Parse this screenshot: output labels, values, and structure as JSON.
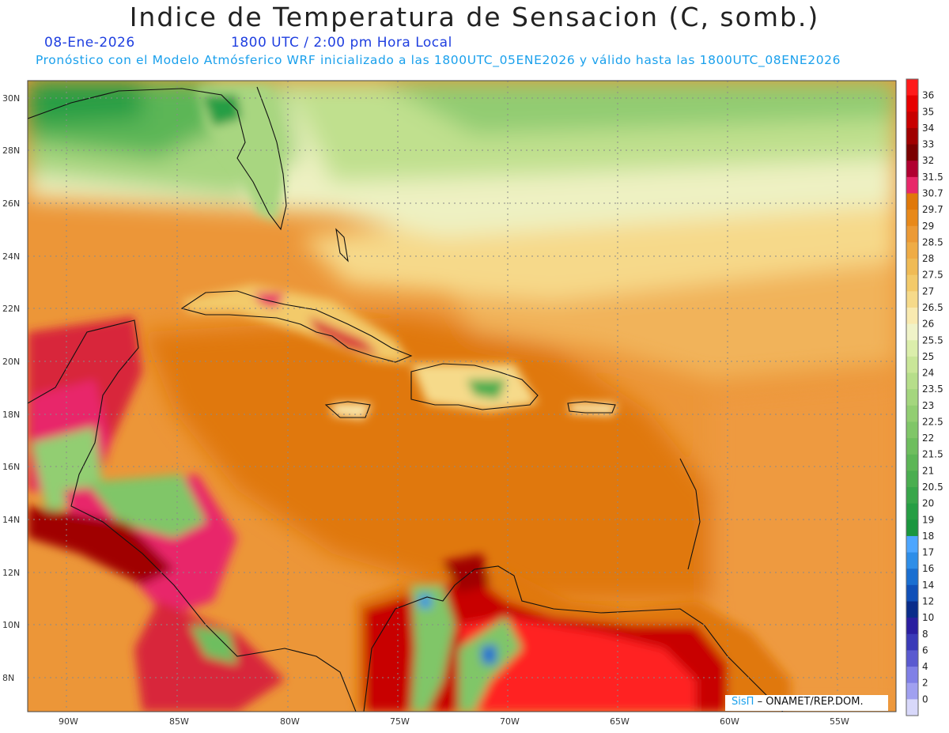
{
  "header": {
    "title": "Indice de Temperatura de Sensacion (C, somb.)",
    "date": "08-Ene-2026",
    "time": "1800 UTC / 2:00 pm Hora Local",
    "model_line": "Pronóstico con el Modelo Atmósferico WRF inicializado a las 1800UTC_05ENE2026 y válido hasta las  1800UTC_08ENE2026"
  },
  "axes": {
    "lat_labels": [
      "30N",
      "28N",
      "26N",
      "24N",
      "22N",
      "20N",
      "18N",
      "16N",
      "14N",
      "12N",
      "10N",
      "8N"
    ],
    "lon_labels": [
      "90W",
      "85W",
      "80W",
      "75W",
      "70W",
      "65W",
      "60W",
      "55W"
    ]
  },
  "colorbar": {
    "levels": [
      "36",
      "35",
      "34",
      "33",
      "32",
      "31.5",
      "30.7",
      "29.7",
      "29",
      "28.5",
      "28",
      "27.5",
      "27",
      "26.5",
      "26",
      "25.5",
      "25",
      "24",
      "23.5",
      "23",
      "22.5",
      "22",
      "21.5",
      "21",
      "20.5",
      "20",
      "19",
      "18",
      "17",
      "16",
      "14",
      "12",
      "10",
      "8",
      "6",
      "4",
      "2",
      "0"
    ],
    "colors": [
      "#ff1a1a",
      "#e60000",
      "#c80000",
      "#a00000",
      "#7a0000",
      "#b00030",
      "#e8286a",
      "#e0780a",
      "#e8891a",
      "#ec9a35",
      "#efac45",
      "#f0bb55",
      "#f3ca6a",
      "#f6da8a",
      "#f9eab0",
      "#f0f3c8",
      "#dbeeab",
      "#c9e698",
      "#b6de8a",
      "#a4d67e",
      "#92ce72",
      "#80c668",
      "#6ebe5e",
      "#5cb656",
      "#4aae50",
      "#38a64a",
      "#269e44",
      "#1a963e",
      "#4da6ff",
      "#2e8ee8",
      "#1a6fd1",
      "#1050b8",
      "#0a2c8a",
      "#2a1ea0",
      "#3a3ab8",
      "#5a5ad0",
      "#8080e6",
      "#a0a0f0",
      "#d8d8fa"
    ]
  },
  "credit": {
    "brand": "SisΠ",
    "text": "– ONAMET/REP.DOM."
  }
}
